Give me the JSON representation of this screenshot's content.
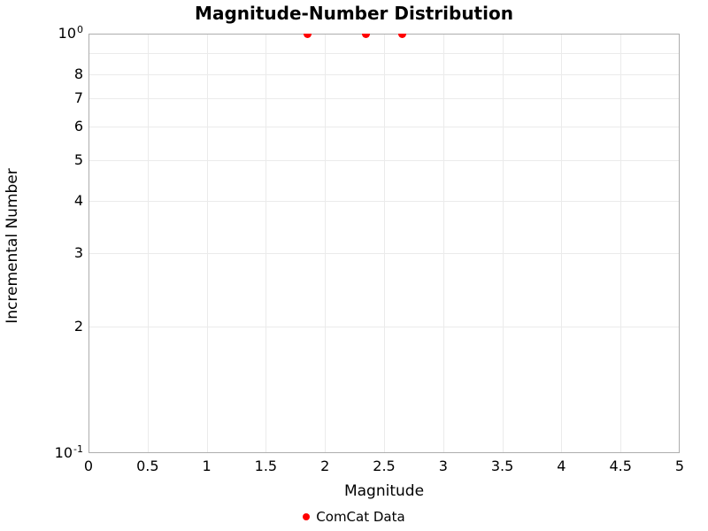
{
  "chart_data": {
    "type": "scatter",
    "title": "Magnitude-Number Distribution",
    "xlabel": "Magnitude",
    "ylabel": "Incremental Number",
    "xlim": [
      0,
      5
    ],
    "ylim": [
      0.1,
      1.0
    ],
    "y_scale": "log10",
    "grid": true,
    "legend_position": "bottom-center",
    "colors": {
      "marker": "#ff0000",
      "spine": "#adadad",
      "gridline": "#ebebeb",
      "text": "#000000",
      "background": "#ffffff"
    },
    "x_ticks": [
      {
        "value": 0,
        "label": "0"
      },
      {
        "value": 0.5,
        "label": "0.5"
      },
      {
        "value": 1,
        "label": "1"
      },
      {
        "value": 1.5,
        "label": "1.5"
      },
      {
        "value": 2,
        "label": "2"
      },
      {
        "value": 2.5,
        "label": "2.5"
      },
      {
        "value": 3,
        "label": "3"
      },
      {
        "value": 3.5,
        "label": "3.5"
      },
      {
        "value": 4,
        "label": "4"
      },
      {
        "value": 4.5,
        "label": "4.5"
      },
      {
        "value": 5,
        "label": "5"
      }
    ],
    "y_major_ticks": [
      {
        "value": 1.0,
        "base": "10",
        "exponent": "0"
      },
      {
        "value": 0.1,
        "base": "10",
        "exponent": "-1"
      }
    ],
    "y_minor_ticks": [
      {
        "value": 0.9,
        "label": ""
      },
      {
        "value": 0.8,
        "label": "8"
      },
      {
        "value": 0.7,
        "label": "7"
      },
      {
        "value": 0.6,
        "label": "6"
      },
      {
        "value": 0.5,
        "label": "5"
      },
      {
        "value": 0.4,
        "label": "4"
      },
      {
        "value": 0.3,
        "label": "3"
      },
      {
        "value": 0.2,
        "label": "2"
      }
    ],
    "series": [
      {
        "name": "ComCat Data",
        "marker": "circle",
        "color": "#ff0000",
        "points": [
          {
            "x": 1.85,
            "y": 1.0
          },
          {
            "x": 2.35,
            "y": 1.0
          },
          {
            "x": 2.65,
            "y": 1.0
          }
        ]
      }
    ],
    "legend": {
      "entries": [
        {
          "label": "ComCat Data",
          "marker": "circle",
          "color": "#ff0000"
        }
      ]
    }
  }
}
